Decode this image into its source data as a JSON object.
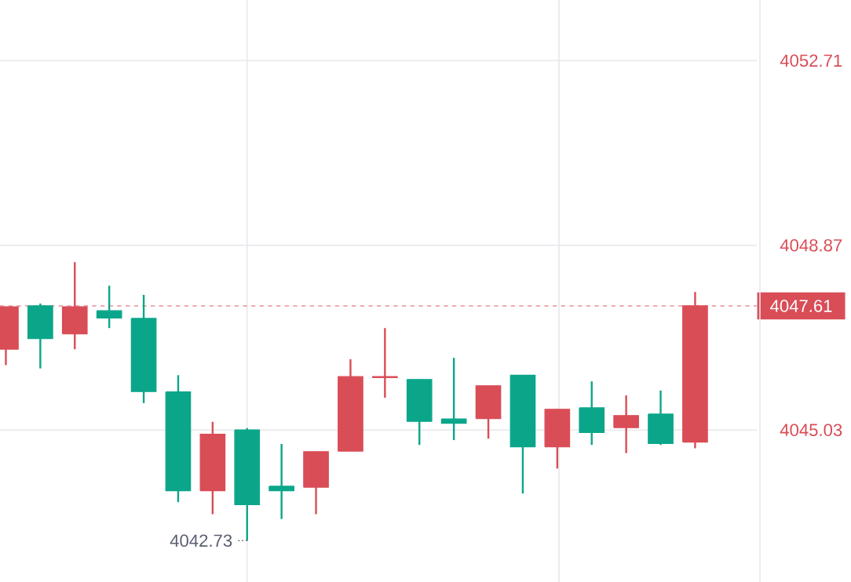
{
  "chart_data": {
    "type": "candlestick",
    "categories": [
      null,
      null,
      null,
      null,
      null,
      null,
      null,
      null,
      null,
      null,
      null,
      null,
      null,
      null,
      null,
      null,
      null,
      null,
      null,
      null,
      null
    ],
    "ohlc": [
      [
        4046.71,
        4047.59,
        4046.38,
        4047.59
      ],
      [
        4047.61,
        4047.66,
        4046.31,
        4046.93
      ],
      [
        4047.03,
        4048.52,
        4046.71,
        4047.59
      ],
      [
        4047.51,
        4048.03,
        4047.15,
        4047.36
      ],
      [
        4047.35,
        4047.84,
        4045.59,
        4045.83
      ],
      [
        4045.82,
        4046.17,
        4043.53,
        4043.77
      ],
      [
        4043.77,
        4045.2,
        4043.28,
        4044.94
      ],
      [
        4045.03,
        4045.07,
        4042.73,
        4043.48
      ],
      [
        4043.86,
        4044.74,
        4043.18,
        4043.77
      ],
      [
        4043.84,
        4044.58,
        4043.28,
        4044.58
      ],
      [
        4044.59,
        4046.5,
        4044.59,
        4046.14
      ],
      [
        4046.12,
        4047.15,
        4045.7,
        4046.14
      ],
      [
        4046.08,
        4046.08,
        4044.72,
        4045.21
      ],
      [
        4045.26,
        4046.53,
        4044.82,
        4045.17
      ],
      [
        4045.27,
        4045.95,
        4044.85,
        4045.95
      ],
      [
        4046.17,
        4046.17,
        4043.71,
        4044.68
      ],
      [
        4044.68,
        4045.46,
        4044.23,
        4045.46
      ],
      [
        4045.49,
        4046.04,
        4044.72,
        4044.98
      ],
      [
        4045.08,
        4045.75,
        4044.55,
        4045.33
      ],
      [
        4045.36,
        4045.85,
        4044.72,
        4044.75
      ],
      [
        4044.78,
        4047.9,
        4044.65,
        4047.61
      ]
    ],
    "colors": [
      "#d94d57",
      "#0ba68a",
      "#d94d57",
      "#0ba68a",
      "#0ba68a",
      "#0ba68a",
      "#d94d57",
      "#0ba68a",
      "#0ba68a",
      "#d94d57",
      "#d94d57",
      "#d94d57",
      "#0ba68a",
      "#0ba68a",
      "#d94d57",
      "#0ba68a",
      "#d94d57",
      "#0ba68a",
      "#d94d57",
      "#0ba68a",
      "#d94d57"
    ],
    "ylim": [
      4041.87,
      4053.97
    ],
    "yticks": [
      4045.03,
      4048.87,
      4052.71
    ],
    "grid": "y",
    "ref_lines": [
      {
        "axis": "y",
        "value": 4047.61,
        "label": "4047.61",
        "color": "#d94d57",
        "line_style": "dashed"
      }
    ],
    "annotations": [
      "4042.73"
    ]
  }
}
